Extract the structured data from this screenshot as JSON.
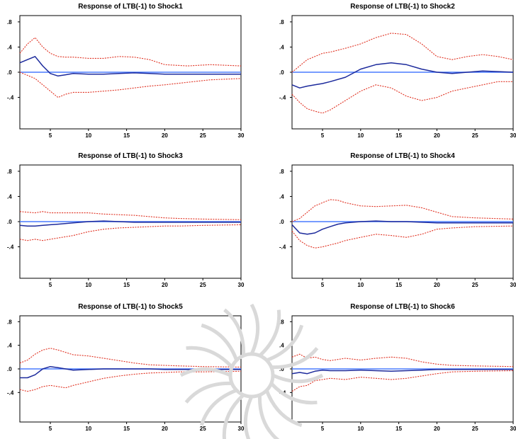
{
  "figure": {
    "zero_line_color": "#4a7cff",
    "irf_color": "#1c2a9c",
    "band_color": "#e03020",
    "frame_color": "#000000",
    "watermark_color": "#d9d9d9",
    "watermark_icon": "star-seal-icon"
  },
  "chart_data": [
    {
      "type": "line",
      "title": "Response of LTB(-1) to Shock1",
      "xlim": [
        1,
        30
      ],
      "ylim": [
        -0.09,
        0.09
      ],
      "xticks": [
        5,
        10,
        15,
        20,
        25,
        30
      ],
      "xtick_labels": [
        "5",
        "10",
        "15",
        "20",
        "25",
        "30"
      ],
      "yticks": [
        0.08,
        0.04,
        0.0,
        -0.04
      ],
      "ytick_labels": [
        ".8",
        ".4",
        ".0",
        "-.4"
      ],
      "x": [
        1,
        2,
        3,
        4,
        5,
        6,
        7,
        8,
        10,
        12,
        14,
        16,
        18,
        20,
        23,
        26,
        30
      ],
      "series": [
        {
          "values": [
            0.015,
            0.02,
            0.025,
            0.01,
            -0.002,
            -0.006,
            -0.004,
            -0.002,
            -0.003,
            -0.003,
            -0.002,
            -0.001,
            -0.002,
            -0.003,
            -0.003,
            -0.003,
            -0.003
          ]
        },
        {
          "values": [
            0.03,
            0.045,
            0.055,
            0.04,
            0.03,
            0.025,
            0.024,
            0.024,
            0.022,
            0.022,
            0.025,
            0.024,
            0.02,
            0.012,
            0.01,
            0.012,
            0.01
          ]
        },
        {
          "values": [
            0.0,
            -0.005,
            -0.01,
            -0.02,
            -0.03,
            -0.04,
            -0.035,
            -0.032,
            -0.032,
            -0.03,
            -0.028,
            -0.025,
            -0.022,
            -0.02,
            -0.016,
            -0.012,
            -0.01
          ]
        }
      ]
    },
    {
      "type": "line",
      "title": "Response of LTB(-1) to Shock2",
      "xlim": [
        1,
        30
      ],
      "ylim": [
        -0.09,
        0.09
      ],
      "xticks": [
        5,
        10,
        15,
        20,
        25,
        30
      ],
      "xtick_labels": [
        "5",
        "10",
        "15",
        "20",
        "25",
        "30"
      ],
      "yticks": [
        0.08,
        0.04,
        0.0,
        -0.04
      ],
      "ytick_labels": [
        ".8",
        ".4",
        ".0",
        "-.4"
      ],
      "x": [
        1,
        2,
        3,
        4,
        5,
        6,
        8,
        10,
        12,
        14,
        16,
        18,
        20,
        22,
        24,
        26,
        28,
        30
      ],
      "series": [
        {
          "values": [
            -0.02,
            -0.025,
            -0.022,
            -0.02,
            -0.018,
            -0.015,
            -0.008,
            0.005,
            0.012,
            0.015,
            0.012,
            0.005,
            0.0,
            -0.002,
            0.0,
            0.002,
            0.001,
            0.0
          ]
        },
        {
          "values": [
            0.0,
            0.01,
            0.02,
            0.025,
            0.03,
            0.032,
            0.038,
            0.045,
            0.055,
            0.062,
            0.06,
            0.045,
            0.025,
            0.02,
            0.025,
            0.028,
            0.025,
            0.02
          ]
        },
        {
          "values": [
            -0.035,
            -0.048,
            -0.058,
            -0.062,
            -0.065,
            -0.06,
            -0.045,
            -0.03,
            -0.02,
            -0.025,
            -0.038,
            -0.045,
            -0.04,
            -0.03,
            -0.025,
            -0.02,
            -0.015,
            -0.015
          ]
        }
      ]
    },
    {
      "type": "line",
      "title": "Response of LTB(-1) to Shock3",
      "xlim": [
        1,
        30
      ],
      "ylim": [
        -0.09,
        0.09
      ],
      "xticks": [
        5,
        10,
        15,
        20,
        25,
        30
      ],
      "xtick_labels": [
        "5",
        "10",
        "15",
        "20",
        "25",
        "30"
      ],
      "yticks": [
        0.08,
        0.04,
        0.0,
        -0.04
      ],
      "ytick_labels": [
        ".8",
        ".4",
        ".0",
        "-.4"
      ],
      "x": [
        1,
        2,
        3,
        4,
        5,
        6,
        8,
        10,
        12,
        14,
        16,
        18,
        20,
        22,
        25,
        30
      ],
      "series": [
        {
          "values": [
            -0.006,
            -0.007,
            -0.007,
            -0.006,
            -0.005,
            -0.004,
            -0.002,
            0.0,
            0.001,
            0.0,
            -0.001,
            -0.001,
            -0.001,
            -0.001,
            -0.001,
            -0.001
          ]
        },
        {
          "values": [
            0.016,
            0.015,
            0.014,
            0.016,
            0.014,
            0.014,
            0.014,
            0.014,
            0.012,
            0.011,
            0.01,
            0.008,
            0.006,
            0.005,
            0.004,
            0.003
          ]
        },
        {
          "values": [
            -0.028,
            -0.03,
            -0.028,
            -0.03,
            -0.028,
            -0.026,
            -0.022,
            -0.016,
            -0.012,
            -0.01,
            -0.009,
            -0.008,
            -0.007,
            -0.007,
            -0.006,
            -0.005
          ]
        }
      ]
    },
    {
      "type": "line",
      "title": "Response of LTB(-1) to Shock4",
      "xlim": [
        1,
        30
      ],
      "ylim": [
        -0.09,
        0.09
      ],
      "xticks": [
        5,
        10,
        15,
        20,
        25,
        30
      ],
      "xtick_labels": [
        "5",
        "10",
        "15",
        "20",
        "25",
        "30"
      ],
      "yticks": [
        0.08,
        0.04,
        0.0,
        -0.04
      ],
      "ytick_labels": [
        ".8",
        ".4",
        ".0",
        "-.4"
      ],
      "x": [
        1,
        2,
        3,
        4,
        5,
        6,
        7,
        8,
        10,
        12,
        14,
        16,
        18,
        20,
        22,
        25,
        30
      ],
      "series": [
        {
          "values": [
            -0.005,
            -0.018,
            -0.02,
            -0.018,
            -0.012,
            -0.008,
            -0.004,
            -0.002,
            0.0,
            0.001,
            0.0,
            0.0,
            -0.001,
            -0.002,
            -0.002,
            -0.002,
            -0.002
          ]
        },
        {
          "values": [
            0.0,
            0.005,
            0.015,
            0.025,
            0.03,
            0.035,
            0.034,
            0.03,
            0.025,
            0.024,
            0.025,
            0.026,
            0.022,
            0.015,
            0.008,
            0.006,
            0.004
          ]
        },
        {
          "values": [
            -0.015,
            -0.03,
            -0.038,
            -0.042,
            -0.04,
            -0.037,
            -0.034,
            -0.03,
            -0.025,
            -0.02,
            -0.022,
            -0.025,
            -0.02,
            -0.012,
            -0.01,
            -0.008,
            -0.007
          ]
        }
      ]
    },
    {
      "type": "line",
      "title": "Response of LTB(-1) to Shock5",
      "xlim": [
        1,
        30
      ],
      "ylim": [
        -0.09,
        0.09
      ],
      "xticks": [
        5,
        10,
        15,
        20,
        25,
        30
      ],
      "xtick_labels": [
        "5",
        "10",
        "15",
        "20",
        "25",
        "30"
      ],
      "yticks": [
        0.08,
        0.04,
        0.0,
        -0.04
      ],
      "ytick_labels": [
        ".8",
        ".4",
        ".0",
        "-.4"
      ],
      "x": [
        1,
        2,
        3,
        4,
        5,
        6,
        7,
        8,
        10,
        12,
        14,
        16,
        18,
        20,
        22,
        25,
        30
      ],
      "series": [
        {
          "values": [
            -0.015,
            -0.015,
            -0.01,
            0.0,
            0.004,
            0.002,
            0.0,
            -0.002,
            -0.001,
            0.0,
            0.0,
            0.0,
            0.0,
            -0.001,
            -0.001,
            -0.001,
            -0.001
          ]
        },
        {
          "values": [
            0.01,
            0.015,
            0.025,
            0.032,
            0.035,
            0.032,
            0.028,
            0.024,
            0.022,
            0.018,
            0.014,
            0.01,
            0.007,
            0.006,
            0.005,
            0.004,
            0.003
          ]
        },
        {
          "values": [
            -0.035,
            -0.038,
            -0.035,
            -0.03,
            -0.028,
            -0.03,
            -0.032,
            -0.028,
            -0.022,
            -0.016,
            -0.012,
            -0.009,
            -0.007,
            -0.006,
            -0.005,
            -0.005,
            -0.004
          ]
        }
      ]
    },
    {
      "type": "line",
      "title": "Response of LTB(-1) to Shock6",
      "xlim": [
        1,
        30
      ],
      "ylim": [
        -0.09,
        0.09
      ],
      "xticks": [
        5,
        10,
        15,
        20,
        25,
        30
      ],
      "xtick_labels": [
        "5",
        "10",
        "15",
        "20",
        "25",
        "30"
      ],
      "yticks": [
        0.08,
        0.04,
        0.0,
        -0.04
      ],
      "ytick_labels": [
        ".8",
        ".4",
        ".0",
        "-.4"
      ],
      "x": [
        1,
        2,
        3,
        4,
        5,
        6,
        8,
        10,
        12,
        14,
        16,
        18,
        20,
        22,
        25,
        30
      ],
      "series": [
        {
          "values": [
            -0.008,
            -0.006,
            -0.008,
            -0.004,
            -0.002,
            -0.003,
            -0.003,
            -0.002,
            -0.003,
            -0.004,
            -0.003,
            -0.002,
            -0.001,
            -0.001,
            -0.001,
            -0.001
          ]
        },
        {
          "values": [
            0.02,
            0.025,
            0.018,
            0.02,
            0.016,
            0.014,
            0.018,
            0.015,
            0.018,
            0.02,
            0.018,
            0.012,
            0.008,
            0.006,
            0.005,
            0.004
          ]
        },
        {
          "values": [
            -0.038,
            -0.03,
            -0.028,
            -0.02,
            -0.018,
            -0.016,
            -0.018,
            -0.014,
            -0.016,
            -0.018,
            -0.016,
            -0.012,
            -0.008,
            -0.005,
            -0.004,
            -0.003
          ]
        }
      ]
    }
  ]
}
